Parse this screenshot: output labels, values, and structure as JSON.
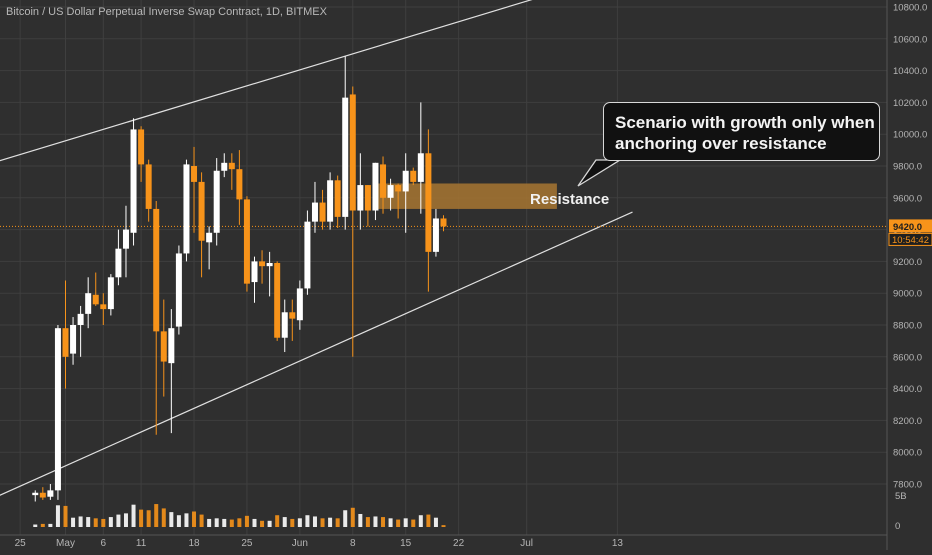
{
  "title": "Bitcoin / US Dollar Perpetual Inverse Swap Contract, 1D, BITMEX",
  "colors": {
    "background": "#2f2f2f",
    "grid": "#3f3f3f",
    "up": "#ffffff",
    "down": "#f7931a",
    "resistance_zone": "#a77531",
    "price_line": "#f7931a",
    "channel_line": "#e0e0e0"
  },
  "annotations": {
    "callout_lines": [
      "Scenario with growth only when",
      "anchoring over resistance"
    ],
    "resistance_label": "Resistance"
  },
  "price_label": {
    "price": "9420.0",
    "countdown": "10:54:42"
  },
  "chart_data": {
    "type": "candlestick",
    "instrument": "Bitcoin / US Dollar Perpetual Inverse Swap Contract",
    "interval": "1D",
    "exchange": "BITMEX",
    "ylim": [
      7750,
      10900
    ],
    "y_ticks": [
      "7800.0",
      "8000.0",
      "8200.0",
      "8400.0",
      "8600.0",
      "8800.0",
      "9000.0",
      "9200.0",
      "9400.0",
      "9600.0",
      "9800.0",
      "10000.0",
      "10200.0",
      "10400.0",
      "10600.0",
      "10800.0"
    ],
    "x_tick_labels": [
      {
        "label": "25",
        "day": -6
      },
      {
        "label": "May",
        "day": 0
      },
      {
        "label": "6",
        "day": 5
      },
      {
        "label": "11",
        "day": 10
      },
      {
        "label": "18",
        "day": 17
      },
      {
        "label": "25",
        "day": 24
      },
      {
        "label": "Jun",
        "day": 31
      },
      {
        "label": "8",
        "day": 38
      },
      {
        "label": "15",
        "day": 45
      },
      {
        "label": "22",
        "day": 52
      },
      {
        "label": "Jul",
        "day": 61
      },
      {
        "label": "13",
        "day": 73
      }
    ],
    "volume_tick": "5B",
    "volume_zero_tick": "0",
    "candles": [
      {
        "d": -4,
        "o": 7730,
        "h": 7760,
        "l": 7690,
        "c": 7745,
        "v": 0.4
      },
      {
        "d": -3,
        "o": 7745,
        "h": 7780,
        "l": 7700,
        "c": 7715,
        "v": 0.5
      },
      {
        "d": -2,
        "o": 7720,
        "h": 7800,
        "l": 7700,
        "c": 7760,
        "v": 0.5
      },
      {
        "d": -1,
        "o": 7760,
        "h": 8800,
        "l": 7700,
        "c": 8780,
        "v": 3.5
      },
      {
        "d": 0,
        "o": 8780,
        "h": 9080,
        "l": 8400,
        "c": 8600,
        "v": 3.4
      },
      {
        "d": 1,
        "o": 8620,
        "h": 8850,
        "l": 8550,
        "c": 8800,
        "v": 1.5
      },
      {
        "d": 2,
        "o": 8800,
        "h": 8920,
        "l": 8600,
        "c": 8870,
        "v": 1.7
      },
      {
        "d": 3,
        "o": 8870,
        "h": 9100,
        "l": 8780,
        "c": 9000,
        "v": 1.6
      },
      {
        "d": 4,
        "o": 8990,
        "h": 9130,
        "l": 8920,
        "c": 8930,
        "v": 1.4
      },
      {
        "d": 5,
        "o": 8930,
        "h": 9000,
        "l": 8800,
        "c": 8900,
        "v": 1.3
      },
      {
        "d": 6,
        "o": 8900,
        "h": 9120,
        "l": 8860,
        "c": 9100,
        "v": 1.6
      },
      {
        "d": 7,
        "o": 9100,
        "h": 9400,
        "l": 9050,
        "c": 9280,
        "v": 2.0
      },
      {
        "d": 8,
        "o": 9280,
        "h": 9550,
        "l": 9100,
        "c": 9400,
        "v": 2.2
      },
      {
        "d": 9,
        "o": 9380,
        "h": 10100,
        "l": 9300,
        "c": 10030,
        "v": 3.6
      },
      {
        "d": 10,
        "o": 10030,
        "h": 10050,
        "l": 9700,
        "c": 9810,
        "v": 2.8
      },
      {
        "d": 11,
        "o": 9810,
        "h": 9840,
        "l": 9450,
        "c": 9530,
        "v": 2.7
      },
      {
        "d": 12,
        "o": 9530,
        "h": 9580,
        "l": 8110,
        "c": 8760,
        "v": 3.7
      },
      {
        "d": 13,
        "o": 8760,
        "h": 8960,
        "l": 8350,
        "c": 8570,
        "v": 3.0
      },
      {
        "d": 14,
        "o": 8560,
        "h": 8900,
        "l": 8120,
        "c": 8780,
        "v": 2.4
      },
      {
        "d": 15,
        "o": 8790,
        "h": 9300,
        "l": 8740,
        "c": 9250,
        "v": 1.9
      },
      {
        "d": 16,
        "o": 9250,
        "h": 9840,
        "l": 9200,
        "c": 9810,
        "v": 2.2
      },
      {
        "d": 17,
        "o": 9800,
        "h": 9920,
        "l": 9380,
        "c": 9700,
        "v": 2.5
      },
      {
        "d": 18,
        "o": 9700,
        "h": 9760,
        "l": 9100,
        "c": 9330,
        "v": 2.0
      },
      {
        "d": 19,
        "o": 9320,
        "h": 9420,
        "l": 9150,
        "c": 9380,
        "v": 1.3
      },
      {
        "d": 20,
        "o": 9380,
        "h": 9850,
        "l": 9300,
        "c": 9770,
        "v": 1.4
      },
      {
        "d": 21,
        "o": 9770,
        "h": 9880,
        "l": 9730,
        "c": 9820,
        "v": 1.3
      },
      {
        "d": 22,
        "o": 9820,
        "h": 9880,
        "l": 9650,
        "c": 9780,
        "v": 1.2
      },
      {
        "d": 23,
        "o": 9780,
        "h": 9900,
        "l": 9430,
        "c": 9590,
        "v": 1.4
      },
      {
        "d": 24,
        "o": 9590,
        "h": 9610,
        "l": 9010,
        "c": 9060,
        "v": 1.8
      },
      {
        "d": 25,
        "o": 9070,
        "h": 9230,
        "l": 8940,
        "c": 9200,
        "v": 1.3
      },
      {
        "d": 26,
        "o": 9200,
        "h": 9270,
        "l": 9060,
        "c": 9170,
        "v": 1.0
      },
      {
        "d": 27,
        "o": 9170,
        "h": 9260,
        "l": 8980,
        "c": 9190,
        "v": 1.0
      },
      {
        "d": 28,
        "o": 9190,
        "h": 9200,
        "l": 8700,
        "c": 8720,
        "v": 1.9
      },
      {
        "d": 29,
        "o": 8720,
        "h": 8960,
        "l": 8630,
        "c": 8880,
        "v": 1.6
      },
      {
        "d": 30,
        "o": 8880,
        "h": 8960,
        "l": 8700,
        "c": 8840,
        "v": 1.3
      },
      {
        "d": 31,
        "o": 8830,
        "h": 9080,
        "l": 8770,
        "c": 9030,
        "v": 1.4
      },
      {
        "d": 32,
        "o": 9030,
        "h": 9520,
        "l": 8990,
        "c": 9450,
        "v": 1.9
      },
      {
        "d": 33,
        "o": 9450,
        "h": 9700,
        "l": 9380,
        "c": 9570,
        "v": 1.7
      },
      {
        "d": 34,
        "o": 9570,
        "h": 9650,
        "l": 9400,
        "c": 9450,
        "v": 1.4
      },
      {
        "d": 35,
        "o": 9450,
        "h": 9760,
        "l": 9400,
        "c": 9710,
        "v": 1.5
      },
      {
        "d": 36,
        "o": 9710,
        "h": 9740,
        "l": 9410,
        "c": 9480,
        "v": 1.4
      },
      {
        "d": 37,
        "o": 9480,
        "h": 10490,
        "l": 9400,
        "c": 10230,
        "v": 2.7
      },
      {
        "d": 38,
        "o": 10250,
        "h": 10300,
        "l": 8600,
        "c": 9520,
        "v": 3.1
      },
      {
        "d": 39,
        "o": 9520,
        "h": 9880,
        "l": 9400,
        "c": 9680,
        "v": 2.1
      },
      {
        "d": 40,
        "o": 9680,
        "h": 9680,
        "l": 9420,
        "c": 9520,
        "v": 1.6
      },
      {
        "d": 41,
        "o": 9520,
        "h": 9820,
        "l": 9460,
        "c": 9820,
        "v": 1.7
      },
      {
        "d": 42,
        "o": 9810,
        "h": 9860,
        "l": 9500,
        "c": 9600,
        "v": 1.6
      },
      {
        "d": 43,
        "o": 9600,
        "h": 9720,
        "l": 9520,
        "c": 9680,
        "v": 1.4
      },
      {
        "d": 44,
        "o": 9680,
        "h": 9690,
        "l": 9470,
        "c": 9640,
        "v": 1.2
      },
      {
        "d": 45,
        "o": 9640,
        "h": 9880,
        "l": 9380,
        "c": 9770,
        "v": 1.4
      },
      {
        "d": 46,
        "o": 9770,
        "h": 9790,
        "l": 9680,
        "c": 9700,
        "v": 1.2
      },
      {
        "d": 47,
        "o": 9700,
        "h": 10200,
        "l": 9500,
        "c": 9880,
        "v": 1.9
      },
      {
        "d": 48,
        "o": 9880,
        "h": 10030,
        "l": 9010,
        "c": 9260,
        "v": 2.0
      },
      {
        "d": 49,
        "o": 9260,
        "h": 9530,
        "l": 9230,
        "c": 9470,
        "v": 1.5
      },
      {
        "d": 50,
        "o": 9470,
        "h": 9490,
        "l": 9390,
        "c": 9420,
        "v": 0.3
      }
    ],
    "channel_upper": [
      {
        "d": -11,
        "p": 9800
      },
      {
        "d": 9,
        "p": 10090
      },
      {
        "d": 64,
        "p": 10880
      }
    ],
    "channel_lower": [
      {
        "d": -11,
        "p": 7680
      },
      {
        "d": 36,
        "p": 8600
      },
      {
        "d": 75,
        "p": 9510
      }
    ],
    "resistance_zone": [
      9530,
      9690
    ],
    "resistance_zone_days": [
      41,
      65
    ],
    "last_price": 9420
  }
}
